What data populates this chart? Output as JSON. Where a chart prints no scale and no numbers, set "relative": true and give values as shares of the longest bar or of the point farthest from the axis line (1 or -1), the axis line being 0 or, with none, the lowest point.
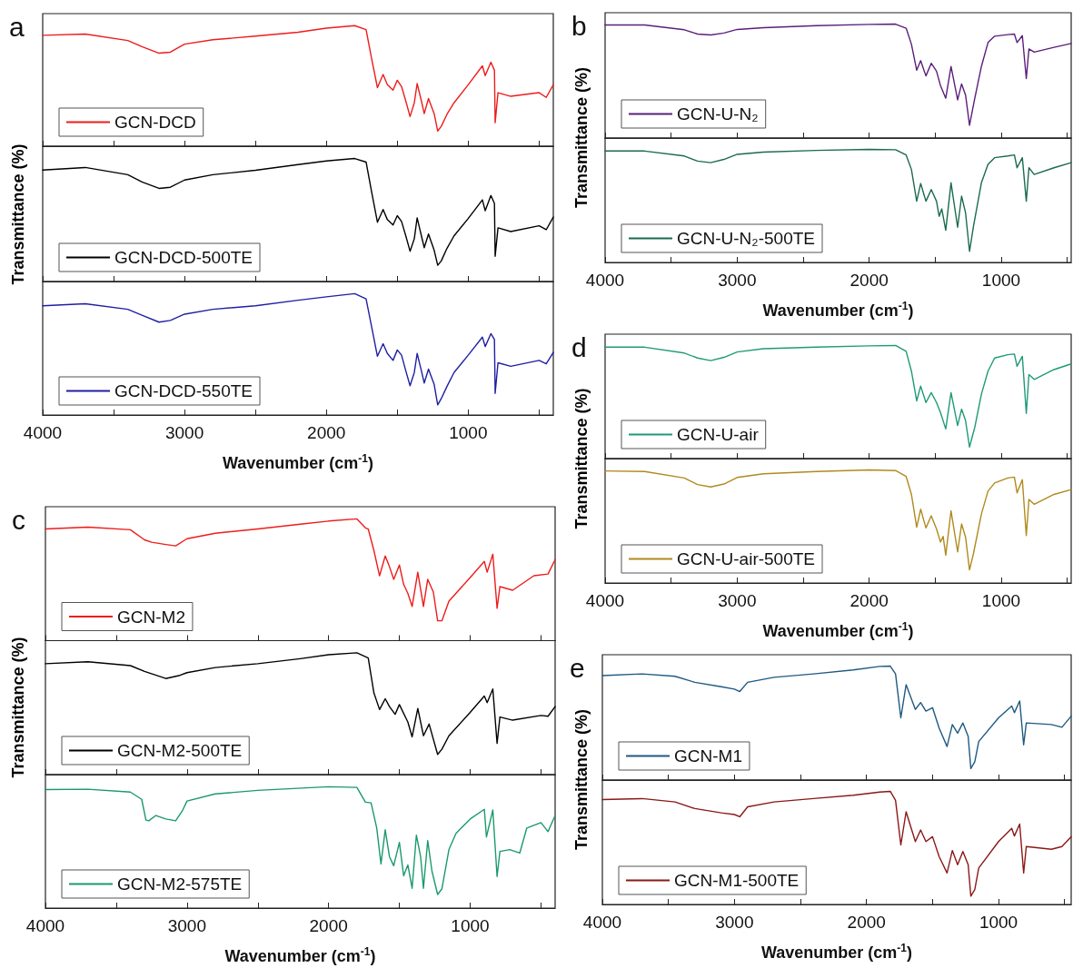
{
  "chart_data": [
    {
      "type": "line",
      "title": "a",
      "relative": true,
      "legend": "bottom left",
      "tick_labels": false,
      "xlim": [
        4000,
        400
      ],
      "xticks": [
        4000,
        {
          "value": 3500,
          "label": null
        },
        3000,
        {
          "value": 2500,
          "label": null
        },
        2000,
        {
          "value": 1500,
          "label": null
        },
        1000,
        {
          "value": 500,
          "label": null
        }
      ],
      "x": [
        4000,
        3700,
        3400,
        3300,
        3180,
        3100,
        3000,
        2800,
        2500,
        2200,
        2000,
        1800,
        1720,
        1680,
        1640,
        1600,
        1570,
        1530,
        1500,
        1470,
        1440,
        1410,
        1380,
        1360,
        1330,
        1310,
        1280,
        1240,
        1215,
        1190,
        1150,
        1100,
        1000,
        900,
        880,
        840,
        815,
        810,
        790,
        700,
        500,
        450,
        400
      ],
      "series": [
        {
          "name": "GCN-DCD",
          "color": "#ee1c1c",
          "values": [
            0.92,
            0.93,
            0.877,
            0.826,
            0.772,
            0.78,
            0.847,
            0.883,
            0.913,
            0.946,
            0.979,
            1,
            0.967,
            0.721,
            0.486,
            0.595,
            0.51,
            0.465,
            0.547,
            0.495,
            0.375,
            0.246,
            0.36,
            0.52,
            0.375,
            0.27,
            0.396,
            0.27,
            0.126,
            0.165,
            0.264,
            0.36,
            0.51,
            0.667,
            0.586,
            0.697,
            0.63,
            0.195,
            0.444,
            0.414,
            0.444,
            0.405,
            0.51
          ]
        }
      ]
    },
    {
      "type": "line",
      "ylabel": "Transmittance (%)",
      "relative": true,
      "legend": "bottom left",
      "tick_labels": false,
      "xlim": [
        4000,
        400
      ],
      "xticks": [
        4000,
        {
          "value": 3500,
          "label": null
        },
        3000,
        {
          "value": 2500,
          "label": null
        },
        2000,
        {
          "value": 1500,
          "label": null
        },
        1000,
        {
          "value": 500,
          "label": null
        }
      ],
      "x": [
        4000,
        3700,
        3400,
        3300,
        3180,
        3100,
        3000,
        2800,
        2500,
        2200,
        2000,
        1800,
        1720,
        1680,
        1640,
        1600,
        1570,
        1530,
        1500,
        1470,
        1440,
        1410,
        1380,
        1360,
        1330,
        1310,
        1280,
        1240,
        1215,
        1190,
        1150,
        1100,
        1000,
        900,
        880,
        840,
        815,
        810,
        790,
        700,
        500,
        450,
        400
      ],
      "series": [
        {
          "name": "GCN-DCD-500TE",
          "color": "#000000",
          "values": [
            0.906,
            0.927,
            0.868,
            0.81,
            0.757,
            0.766,
            0.825,
            0.868,
            0.904,
            0.95,
            0.98,
            1,
            0.971,
            0.722,
            0.482,
            0.585,
            0.503,
            0.459,
            0.535,
            0.488,
            0.371,
            0.246,
            0.348,
            0.518,
            0.371,
            0.275,
            0.386,
            0.254,
            0.132,
            0.167,
            0.269,
            0.371,
            0.512,
            0.664,
            0.576,
            0.699,
            0.635,
            0.205,
            0.436,
            0.406,
            0.453,
            0.421,
            0.523
          ]
        }
      ]
    },
    {
      "type": "line",
      "xlabel": "Wavenumber (cm$^{-1}$)",
      "relative": true,
      "legend": "bottom left",
      "tick_labels": "x",
      "xlim": [
        4000,
        400
      ],
      "xticks": [
        4000,
        {
          "value": 3500,
          "label": null
        },
        3000,
        {
          "value": 2500,
          "label": null
        },
        2000,
        {
          "value": 1500,
          "label": null
        },
        1000,
        {
          "value": 500,
          "label": null
        }
      ],
      "x": [
        4000,
        3700,
        3400,
        3300,
        3180,
        3100,
        3000,
        2800,
        2500,
        2200,
        2000,
        1800,
        1720,
        1680,
        1640,
        1600,
        1570,
        1530,
        1500,
        1470,
        1440,
        1410,
        1380,
        1360,
        1330,
        1310,
        1280,
        1240,
        1215,
        1190,
        1150,
        1100,
        1000,
        900,
        880,
        840,
        815,
        810,
        790,
        700,
        500,
        450,
        400
      ],
      "series": [
        {
          "name": "GCN-DCD-550TE",
          "color": "#1f1fa3",
          "values": [
            0.9,
            0.917,
            0.871,
            0.822,
            0.765,
            0.779,
            0.831,
            0.871,
            0.9,
            0.946,
            0.974,
            1,
            0.957,
            0.722,
            0.484,
            0.587,
            0.507,
            0.45,
            0.536,
            0.493,
            0.364,
            0.241,
            0.35,
            0.507,
            0.364,
            0.264,
            0.378,
            0.252,
            0.083,
            0.135,
            0.235,
            0.35,
            0.493,
            0.642,
            0.564,
            0.67,
            0.622,
            0.178,
            0.43,
            0.401,
            0.45,
            0.421,
            0.516
          ]
        }
      ]
    },
    {
      "type": "line",
      "title": "b",
      "ylabel": "Transmittance (%)",
      "relative": true,
      "legend": "bottom left",
      "tick_labels": false,
      "xlim": [
        4000,
        470
      ],
      "xticks": [
        4000,
        {
          "value": 3500,
          "label": null
        },
        3000,
        {
          "value": 2500,
          "label": null
        },
        2000,
        {
          "value": 1500,
          "label": null
        },
        1000,
        {
          "value": 500,
          "label": null
        }
      ],
      "x": [
        4000,
        3700,
        3400,
        3300,
        3200,
        3100,
        3000,
        2800,
        2400,
        2000,
        1800,
        1720,
        1680,
        1640,
        1610,
        1570,
        1530,
        1490,
        1460,
        1420,
        1380,
        1330,
        1300,
        1270,
        1240,
        1200,
        1150,
        1100,
        1050,
        950,
        900,
        880,
        840,
        810,
        790,
        750,
        600,
        470
      ],
      "series": [
        {
          "name": "GCN-U-N₂",
          "color": "#5b1f7a",
          "values": [
            0.992,
            0.992,
            0.95,
            0.913,
            0.905,
            0.922,
            0.953,
            0.969,
            0.986,
            0.997,
            1,
            0.964,
            0.824,
            0.595,
            0.679,
            0.545,
            0.656,
            0.587,
            0.461,
            0.349,
            0.628,
            0.335,
            0.475,
            0.377,
            0.112,
            0.349,
            0.628,
            0.838,
            0.894,
            0.908,
            0.913,
            0.838,
            0.899,
            0.522,
            0.782,
            0.754,
            0.796,
            0.83
          ]
        }
      ]
    },
    {
      "type": "line",
      "xlabel": "Wavenumber (cm$^{-1}$)",
      "relative": true,
      "legend": "bottom left",
      "tick_labels": "x",
      "xlim": [
        4000,
        470
      ],
      "xticks": [
        4000,
        {
          "value": 3500,
          "label": null
        },
        3000,
        {
          "value": 2500,
          "label": null
        },
        2000,
        {
          "value": 1500,
          "label": null
        },
        1000,
        {
          "value": 500,
          "label": null
        }
      ],
      "x": [
        4000,
        3700,
        3400,
        3300,
        3200,
        3100,
        3000,
        2800,
        2400,
        2000,
        1800,
        1720,
        1680,
        1640,
        1610,
        1570,
        1530,
        1490,
        1470,
        1450,
        1420,
        1380,
        1330,
        1300,
        1270,
        1240,
        1210,
        1150,
        1100,
        1050,
        950,
        900,
        880,
        840,
        810,
        790,
        750,
        600,
        470
      ],
      "series": [
        {
          "name": "GCN-U-N₂-500TE",
          "color": "#1b6b4c",
          "values": [
            0.985,
            0.985,
            0.941,
            0.896,
            0.882,
            0.911,
            0.956,
            0.976,
            0.991,
            1,
            0.997,
            0.95,
            0.822,
            0.541,
            0.698,
            0.541,
            0.645,
            0.541,
            0.408,
            0.473,
            0.284,
            0.704,
            0.311,
            0.586,
            0.438,
            0.098,
            0.32,
            0.704,
            0.867,
            0.926,
            0.941,
            0.95,
            0.837,
            0.926,
            0.541,
            0.837,
            0.778,
            0.837,
            0.882
          ]
        }
      ]
    },
    {
      "type": "line",
      "title": "c",
      "relative": true,
      "legend": "bottom left",
      "tick_labels": false,
      "xlim": [
        4000,
        400
      ],
      "xticks": [
        4000,
        {
          "value": 3500,
          "label": null
        },
        3000,
        {
          "value": 2500,
          "label": null
        },
        2000,
        {
          "value": 1500,
          "label": null
        },
        1000,
        {
          "value": 500,
          "label": null
        }
      ],
      "x": [
        4000,
        3700,
        3400,
        3300,
        3250,
        3150,
        3080,
        3000,
        2800,
        2500,
        2200,
        2000,
        1800,
        1740,
        1720,
        1680,
        1640,
        1600,
        1570,
        1540,
        1500,
        1470,
        1440,
        1410,
        1370,
        1330,
        1300,
        1260,
        1230,
        1200,
        1150,
        1000,
        900,
        880,
        840,
        810,
        790,
        700,
        550,
        450,
        400
      ],
      "series": [
        {
          "name": "GCN-M2",
          "color": "#ee1c1c",
          "values": [
            0.917,
            0.932,
            0.911,
            0.828,
            0.808,
            0.79,
            0.778,
            0.837,
            0.882,
            0.917,
            0.956,
            0.982,
            1,
            0.926,
            0.917,
            0.74,
            0.533,
            0.695,
            0.607,
            0.503,
            0.621,
            0.462,
            0.388,
            0.281,
            0.562,
            0.281,
            0.503,
            0.399,
            0.163,
            0.163,
            0.325,
            0.518,
            0.651,
            0.562,
            0.71,
            0.266,
            0.444,
            0.414,
            0.533,
            0.547,
            0.666
          ]
        }
      ]
    },
    {
      "type": "line",
      "ylabel": "Transmittance (%)",
      "relative": true,
      "legend": "bottom left",
      "tick_labels": false,
      "xlim": [
        4000,
        400
      ],
      "xticks": [
        4000,
        {
          "value": 3500,
          "label": null
        },
        3000,
        {
          "value": 2500,
          "label": null
        },
        2000,
        {
          "value": 1500,
          "label": null
        },
        1000,
        {
          "value": 500,
          "label": null
        }
      ],
      "x": [
        4000,
        3700,
        3400,
        3300,
        3150,
        3050,
        3000,
        2800,
        2500,
        2200,
        2000,
        1800,
        1720,
        1680,
        1640,
        1600,
        1570,
        1530,
        1500,
        1440,
        1410,
        1370,
        1330,
        1290,
        1230,
        1200,
        1150,
        1000,
        900,
        880,
        840,
        810,
        790,
        700,
        500,
        450,
        400
      ],
      "series": [
        {
          "name": "GCN-M2-500TE",
          "color": "#000000",
          "values": [
            0.911,
            0.927,
            0.895,
            0.847,
            0.789,
            0.815,
            0.837,
            0.879,
            0.911,
            0.952,
            0.984,
            1,
            0.958,
            0.671,
            0.534,
            0.623,
            0.559,
            0.495,
            0.575,
            0.431,
            0.31,
            0.543,
            0.319,
            0.415,
            0.166,
            0.208,
            0.319,
            0.511,
            0.645,
            0.591,
            0.703,
            0.256,
            0.473,
            0.447,
            0.486,
            0.479,
            0.559
          ]
        }
      ]
    },
    {
      "type": "line",
      "xlabel": "Wavenumber (cm$^{-1}$)",
      "relative": true,
      "legend": "bottom left",
      "tick_labels": "x",
      "xlim": [
        4000,
        400
      ],
      "xticks": [
        4000,
        {
          "value": 3500,
          "label": null
        },
        3000,
        {
          "value": 2500,
          "label": null
        },
        2000,
        {
          "value": 1500,
          "label": null
        },
        1000,
        {
          "value": 500,
          "label": null
        }
      ],
      "x": [
        4000,
        3700,
        3400,
        3320,
        3290,
        3270,
        3220,
        3150,
        3080,
        3030,
        3000,
        2800,
        2500,
        2000,
        1800,
        1740,
        1700,
        1660,
        1630,
        1600,
        1570,
        1540,
        1500,
        1470,
        1440,
        1410,
        1380,
        1350,
        1330,
        1300,
        1270,
        1230,
        1200,
        1150,
        1100,
        1000,
        900,
        885,
        840,
        810,
        790,
        720,
        650,
        600,
        500,
        450,
        400
      ],
      "series": [
        {
          "name": "GCN-M2-575TE",
          "color": "#1a9a6c",
          "values": [
            0.976,
            0.979,
            0.956,
            0.896,
            0.725,
            0.719,
            0.763,
            0.734,
            0.719,
            0.808,
            0.882,
            0.941,
            0.97,
            1,
            0.994,
            0.873,
            0.867,
            0.66,
            0.364,
            0.645,
            0.423,
            0.349,
            0.541,
            0.266,
            0.355,
            0.163,
            0.601,
            0.423,
            0.163,
            0.556,
            0.305,
            0.112,
            0.157,
            0.482,
            0.615,
            0.734,
            0.814,
            0.586,
            0.808,
            0.26,
            0.467,
            0.482,
            0.453,
            0.66,
            0.704,
            0.63,
            0.763
          ]
        }
      ]
    },
    {
      "type": "line",
      "title": "d",
      "ylabel": "Transmittance (%)",
      "relative": true,
      "legend": "bottom left",
      "tick_labels": false,
      "xlim": [
        4000,
        470
      ],
      "xticks": [
        4000,
        {
          "value": 3500,
          "label": null
        },
        3000,
        {
          "value": 2500,
          "label": null
        },
        2000,
        {
          "value": 1500,
          "label": null
        },
        1000,
        {
          "value": 500,
          "label": null
        }
      ],
      "x": [
        4000,
        3700,
        3400,
        3300,
        3200,
        3100,
        3000,
        2800,
        2400,
        2000,
        1800,
        1720,
        1680,
        1640,
        1610,
        1570,
        1530,
        1490,
        1460,
        1420,
        1380,
        1330,
        1300,
        1270,
        1240,
        1200,
        1150,
        1100,
        1050,
        950,
        900,
        880,
        840,
        810,
        790,
        750,
        600,
        470
      ],
      "series": [
        {
          "name": "GCN-U-air",
          "color": "#1f9a78",
          "values": [
            0.985,
            0.985,
            0.933,
            0.889,
            0.866,
            0.895,
            0.942,
            0.971,
            0.985,
            0.997,
            1,
            0.948,
            0.773,
            0.51,
            0.641,
            0.496,
            0.583,
            0.496,
            0.408,
            0.262,
            0.583,
            0.292,
            0.437,
            0.335,
            0.102,
            0.277,
            0.569,
            0.773,
            0.889,
            0.918,
            0.924,
            0.816,
            0.904,
            0.399,
            0.743,
            0.7,
            0.787,
            0.837
          ]
        }
      ]
    },
    {
      "type": "line",
      "xlabel": "Wavenumber (cm$^{-1}$)",
      "relative": true,
      "legend": "bottom left",
      "tick_labels": "x",
      "xlim": [
        4000,
        470
      ],
      "xticks": [
        4000,
        {
          "value": 3500,
          "label": null
        },
        3000,
        {
          "value": 2500,
          "label": null
        },
        2000,
        {
          "value": 1500,
          "label": null
        },
        1000,
        {
          "value": 500,
          "label": null
        }
      ],
      "x": [
        4000,
        3700,
        3400,
        3300,
        3200,
        3100,
        3000,
        2800,
        2400,
        2000,
        1800,
        1720,
        1680,
        1640,
        1610,
        1570,
        1530,
        1490,
        1460,
        1440,
        1420,
        1380,
        1330,
        1300,
        1270,
        1240,
        1210,
        1150,
        1100,
        1050,
        950,
        900,
        880,
        840,
        810,
        790,
        750,
        600,
        470
      ],
      "series": [
        {
          "name": "GCN-U-air-500TE",
          "color": "#b08a1e",
          "values": [
            0.991,
            0.986,
            0.928,
            0.87,
            0.849,
            0.875,
            0.933,
            0.965,
            0.986,
            1,
            0.994,
            0.942,
            0.783,
            0.493,
            0.652,
            0.487,
            0.594,
            0.478,
            0.362,
            0.412,
            0.246,
            0.638,
            0.275,
            0.522,
            0.406,
            0.116,
            0.261,
            0.609,
            0.812,
            0.884,
            0.928,
            0.936,
            0.797,
            0.913,
            0.42,
            0.739,
            0.696,
            0.783,
            0.826
          ]
        }
      ]
    },
    {
      "type": "line",
      "title": "e",
      "ylabel": "Transmittance (%)",
      "relative": true,
      "legend": "bottom left",
      "tick_labels": false,
      "xlim": [
        4000,
        450
      ],
      "xticks": [
        4000,
        {
          "value": 3500,
          "label": null
        },
        3000,
        {
          "value": 2500,
          "label": null
        },
        2000,
        {
          "value": 1500,
          "label": null
        },
        1000,
        {
          "value": 500,
          "label": null
        }
      ],
      "x": [
        4000,
        3700,
        3450,
        3300,
        3100,
        3000,
        2960,
        2900,
        2700,
        2400,
        2100,
        1900,
        1820,
        1780,
        1740,
        1700,
        1630,
        1590,
        1550,
        1500,
        1450,
        1390,
        1350,
        1310,
        1270,
        1230,
        1210,
        1180,
        1150,
        1000,
        900,
        880,
        840,
        810,
        790,
        600,
        520,
        450
      ],
      "series": [
        {
          "name": "GCN-M1",
          "color": "#1f5a82",
          "values": [
            0.917,
            0.932,
            0.911,
            0.858,
            0.819,
            0.798,
            0.777,
            0.858,
            0.902,
            0.932,
            0.967,
            0.997,
            1,
            0.932,
            0.546,
            0.837,
            0.62,
            0.68,
            0.605,
            0.635,
            0.457,
            0.294,
            0.487,
            0.412,
            0.501,
            0.383,
            0.101,
            0.16,
            0.338,
            0.546,
            0.65,
            0.591,
            0.694,
            0.309,
            0.501,
            0.487,
            0.463,
            0.561
          ]
        }
      ]
    },
    {
      "type": "line",
      "xlabel": "Wavenumber (cm$^{-1}$)",
      "relative": true,
      "legend": "bottom left",
      "tick_labels": "x",
      "xlim": [
        4000,
        450
      ],
      "xticks": [
        4000,
        {
          "value": 3500,
          "label": null
        },
        3000,
        {
          "value": 2500,
          "label": null
        },
        2000,
        {
          "value": 1500,
          "label": null
        },
        1000,
        {
          "value": 500,
          "label": null
        }
      ],
      "x": [
        4000,
        3700,
        3450,
        3300,
        3100,
        3000,
        2960,
        2900,
        2700,
        2400,
        2100,
        1900,
        1820,
        1780,
        1740,
        1700,
        1630,
        1590,
        1550,
        1500,
        1450,
        1390,
        1350,
        1310,
        1270,
        1230,
        1210,
        1180,
        1150,
        1000,
        900,
        880,
        840,
        810,
        790,
        600,
        520,
        450
      ],
      "series": [
        {
          "name": "GCN-M1-500TE",
          "color": "#8b1818",
          "values": [
            0.927,
            0.936,
            0.906,
            0.848,
            0.81,
            0.795,
            0.775,
            0.863,
            0.906,
            0.936,
            0.965,
            0.994,
            1,
            0.921,
            0.526,
            0.819,
            0.556,
            0.658,
            0.556,
            0.599,
            0.424,
            0.278,
            0.477,
            0.351,
            0.468,
            0.351,
            0.073,
            0.132,
            0.322,
            0.556,
            0.673,
            0.605,
            0.711,
            0.278,
            0.512,
            0.488,
            0.512,
            0.599
          ]
        }
      ]
    }
  ]
}
